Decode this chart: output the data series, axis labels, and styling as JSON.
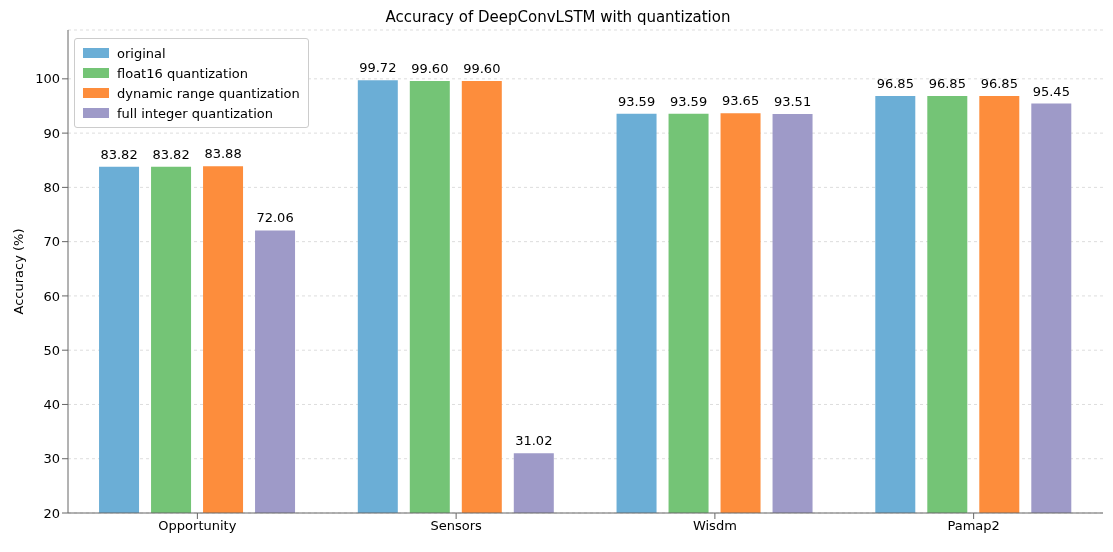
{
  "chart_data": {
    "type": "bar",
    "title": "Accuracy of DeepConvLSTM with quantization",
    "ylabel": "Accuracy (%)",
    "categories": [
      "Opportunity",
      "Sensors",
      "Wisdm",
      "Pamap2"
    ],
    "series": [
      {
        "name": "original",
        "color": "#6baed6",
        "values": [
          83.82,
          99.72,
          93.59,
          96.85
        ],
        "value_labels": [
          "83.82",
          "99.72",
          "93.59",
          "96.85"
        ]
      },
      {
        "name": "float16 quantization",
        "color": "#74c476",
        "values": [
          83.82,
          99.6,
          93.59,
          96.85
        ],
        "value_labels": [
          "83.82",
          "99.60",
          "93.59",
          "96.85"
        ]
      },
      {
        "name": "dynamic range quantization",
        "color": "#fd8d3c",
        "values": [
          83.88,
          99.6,
          93.65,
          96.85
        ],
        "value_labels": [
          "83.88",
          "99.60",
          "93.65",
          "96.85"
        ]
      },
      {
        "name": "full integer quantization",
        "color": "#9e9ac8",
        "values": [
          72.06,
          31.02,
          93.51,
          95.45
        ],
        "value_labels": [
          "72.06",
          "31.02",
          "93.51",
          "95.45"
        ]
      }
    ],
    "ylim": [
      20,
      109
    ],
    "yticks": [
      20,
      30,
      40,
      50,
      60,
      70,
      80,
      90,
      100
    ],
    "grid": "y",
    "legend": "top left"
  }
}
